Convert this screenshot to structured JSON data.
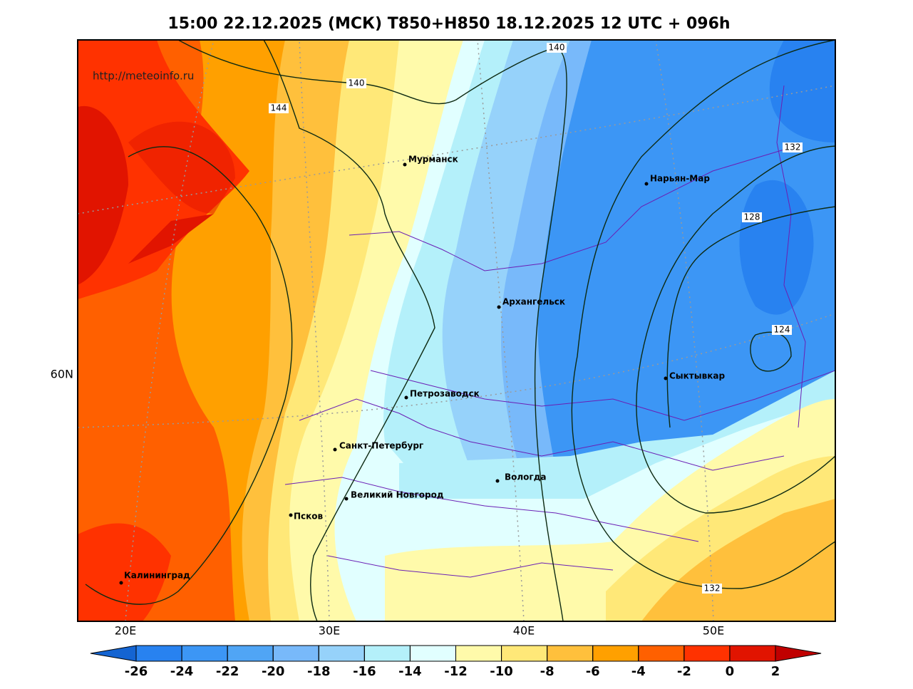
{
  "header": {
    "title": "15:00 22.12.2025 (МСК) T850+H850 18.12.2025 12 UTC + 096h"
  },
  "map": {
    "watermark": "http://meteoinfo.ru",
    "cities": [
      {
        "name": "Мурманск"
      },
      {
        "name": "Нарьян-Мар"
      },
      {
        "name": "Архангельск"
      },
      {
        "name": "Сыктывкар"
      },
      {
        "name": "Петрозаводск"
      },
      {
        "name": "Санкт-Петербург"
      },
      {
        "name": "Вологда"
      },
      {
        "name": "Великий Новгород"
      },
      {
        "name": "Псков"
      },
      {
        "name": "Калининград"
      }
    ],
    "longitude_labels": [
      "20E",
      "30E",
      "40E",
      "50E"
    ],
    "latitude_labels": [
      "60N"
    ],
    "contour_labels": [
      140,
      140,
      144,
      132,
      128,
      124,
      132
    ]
  },
  "colorbar": {
    "ticks": [
      -26,
      -24,
      -22,
      -20,
      -18,
      -16,
      -14,
      -12,
      -10,
      -8,
      -6,
      -4,
      -2,
      0,
      2
    ],
    "colors": [
      "#1464d2",
      "#2882f0",
      "#3c96f5",
      "#50a5f5",
      "#78b9fa",
      "#96d2fa",
      "#b4f0fa",
      "#e1ffff",
      "#fffaaa",
      "#ffe878",
      "#ffc03c",
      "#ffa000",
      "#ff6000",
      "#ff3200",
      "#e11400",
      "#c00000"
    ]
  }
}
